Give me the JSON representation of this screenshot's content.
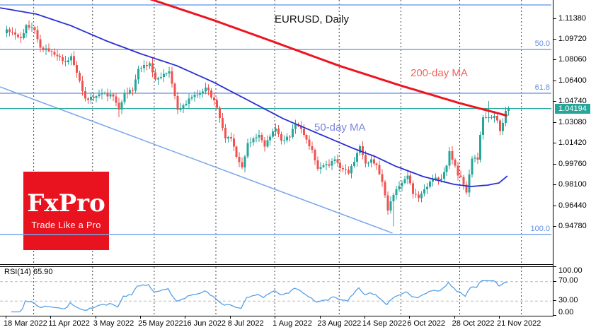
{
  "chart_data": {
    "type": "candlestick",
    "title": "EURUSD, Daily",
    "symbol": "EURUSD",
    "timeframe": "Daily",
    "grid": "monthly-dashed-vertical",
    "legend_position": "none",
    "price_axis_ticks": [
      {
        "label": "1.11380",
        "value": 1.1138
      },
      {
        "label": "1.09720",
        "value": 1.0972
      },
      {
        "label": "1.08060",
        "value": 1.0806
      },
      {
        "label": "1.06400",
        "value": 1.064
      },
      {
        "label": "1.04740",
        "value": 1.0474
      },
      {
        "label": "1.03080",
        "value": 1.0308
      },
      {
        "label": "1.01420",
        "value": 1.0142
      },
      {
        "label": "0.99760",
        "value": 0.9976
      },
      {
        "label": "0.98100",
        "value": 0.981
      },
      {
        "label": "0.96440",
        "value": 0.9644
      },
      {
        "label": "0.94780",
        "value": 0.9478
      }
    ],
    "time_axis_labels": [
      {
        "label": "18 Mar 2022",
        "index": 0
      },
      {
        "label": "11 Apr 2022",
        "index": 16
      },
      {
        "label": "3 May 2022",
        "index": 32
      },
      {
        "label": "25 May 2022",
        "index": 48
      },
      {
        "label": "16 Jun 2022",
        "index": 64
      },
      {
        "label": "8 Jul 2022",
        "index": 80
      },
      {
        "label": "1 Aug 2022",
        "index": 96
      },
      {
        "label": "23 Aug 2022",
        "index": 112
      },
      {
        "label": "14 Sep 2022",
        "index": 128
      },
      {
        "label": "6 Oct 2022",
        "index": 144
      },
      {
        "label": "28 Oct 2022",
        "index": 160
      },
      {
        "label": "21 Nov 2022",
        "index": 176
      }
    ],
    "month_gridline_indices": [
      10,
      31,
      53,
      75,
      96,
      119,
      141,
      162,
      184
    ],
    "num_candles": 180,
    "candle_close_anchors": [
      [
        0,
        1.105
      ],
      [
        2,
        1.1025
      ],
      [
        4,
        1.099
      ],
      [
        5,
        1.098
      ],
      [
        7,
        1.1085
      ],
      [
        9,
        1.1067
      ],
      [
        10,
        1.1045
      ],
      [
        12,
        1.0905
      ],
      [
        15,
        1.0876
      ],
      [
        19,
        1.0828
      ],
      [
        21,
        1.079
      ],
      [
        23,
        1.0838
      ],
      [
        26,
        1.064
      ],
      [
        28,
        1.0498
      ],
      [
        31,
        1.0505
      ],
      [
        34,
        1.054
      ],
      [
        38,
        1.0515
      ],
      [
        40,
        1.0411
      ],
      [
        42,
        1.0545
      ],
      [
        45,
        1.056
      ],
      [
        47,
        1.0735
      ],
      [
        51,
        1.078
      ],
      [
        53,
        1.065
      ],
      [
        57,
        1.07
      ],
      [
        58,
        1.0716
      ],
      [
        59,
        1.0617
      ],
      [
        61,
        1.041
      ],
      [
        63,
        1.0445
      ],
      [
        66,
        1.051
      ],
      [
        70,
        1.0555
      ],
      [
        71,
        1.0585
      ],
      [
        74,
        1.0484
      ],
      [
        75,
        1.0425
      ],
      [
        77,
        1.0265
      ],
      [
        78,
        1.018
      ],
      [
        80,
        1.018
      ],
      [
        82,
        1.0035
      ],
      [
        84,
        0.995
      ],
      [
        86,
        1.0145
      ],
      [
        88,
        1.018
      ],
      [
        90,
        1.021
      ],
      [
        92,
        1.0115
      ],
      [
        94,
        1.0195
      ],
      [
        96,
        1.026
      ],
      [
        98,
        1.0165
      ],
      [
        101,
        1.0193
      ],
      [
        103,
        1.0297
      ],
      [
        105,
        1.0258
      ],
      [
        107,
        1.0172
      ],
      [
        109,
        1.009
      ],
      [
        111,
        0.994
      ],
      [
        113,
        0.9968
      ],
      [
        115,
        0.9965
      ],
      [
        117,
        1.0015
      ],
      [
        119,
        0.9945
      ],
      [
        121,
        0.993
      ],
      [
        122,
        0.9903
      ],
      [
        124,
        0.9995
      ],
      [
        126,
        1.012
      ],
      [
        128,
        0.998
      ],
      [
        130,
        1.0015
      ],
      [
        132,
        0.997
      ],
      [
        134,
        0.9835
      ],
      [
        136,
        0.9608
      ],
      [
        138,
        0.973
      ],
      [
        140,
        0.98
      ],
      [
        141,
        0.9825
      ],
      [
        143,
        0.9885
      ],
      [
        145,
        0.974
      ],
      [
        147,
        0.9705
      ],
      [
        149,
        0.9775
      ],
      [
        152,
        0.9855
      ],
      [
        155,
        0.986
      ],
      [
        157,
        0.9965
      ],
      [
        158,
        1.008
      ],
      [
        160,
        0.9965
      ],
      [
        161,
        0.9885
      ],
      [
        162,
        0.9875
      ],
      [
        164,
        0.975
      ],
      [
        166,
        1.002
      ],
      [
        168,
        1.0012
      ],
      [
        169,
        1.021
      ],
      [
        170,
        1.035
      ],
      [
        172,
        1.035
      ],
      [
        174,
        1.0362
      ],
      [
        175,
        1.0325
      ],
      [
        176,
        1.024
      ],
      [
        177,
        1.0305
      ],
      [
        178,
        1.04
      ],
      [
        179,
        1.04194
      ]
    ],
    "wick_overrides": {
      "40": {
        "low": 1.035
      },
      "84": {
        "low": 0.9935
      },
      "138": {
        "low": 0.948
      },
      "172": {
        "high": 1.048
      },
      "179": {
        "high": 1.0437
      }
    },
    "ma200": {
      "label": "200-day MA",
      "period": 200,
      "anchors": [
        [
          51,
          1.1296
        ],
        [
          74,
          1.1125
        ],
        [
          96,
          1.0948
        ],
        [
          119,
          1.076
        ],
        [
          141,
          1.0602
        ],
        [
          162,
          1.0462
        ],
        [
          179,
          1.0362
        ]
      ]
    },
    "ma50": {
      "label": "50-day MA",
      "period": 50,
      "anchors": [
        [
          -2,
          1.1222
        ],
        [
          11,
          1.1172
        ],
        [
          23,
          1.1082
        ],
        [
          36,
          1.0958
        ],
        [
          48,
          1.0857
        ],
        [
          61,
          1.0761
        ],
        [
          74,
          1.0631
        ],
        [
          86,
          1.0491
        ],
        [
          99,
          1.0339
        ],
        [
          115,
          1.0187
        ],
        [
          124,
          1.0102
        ],
        [
          132,
          1.0035
        ],
        [
          139,
          0.9961
        ],
        [
          149,
          0.9877
        ],
        [
          160,
          0.9815
        ],
        [
          166,
          0.9798
        ],
        [
          172,
          0.9809
        ],
        [
          176,
          0.9826
        ],
        [
          179,
          0.9882
        ]
      ]
    },
    "fib_levels": [
      {
        "label": "",
        "value": 1.1245
      },
      {
        "label": "50.0",
        "value": 1.089
      },
      {
        "label": "61.8",
        "value": 1.0541
      },
      {
        "label": "100.0",
        "value": 0.9416
      }
    ],
    "trendline": {
      "from": [
        -2,
        1.0592
      ],
      "to": [
        138,
        0.9427
      ]
    },
    "price_line": {
      "label": "1.04194",
      "value": 1.04194
    },
    "rsi": {
      "label": "RSI(14) 65.90",
      "period": 14,
      "current_value": 65.9,
      "overbought_level": 70,
      "oversold_level": 30,
      "axis_labels": [
        {
          "label": "100.00",
          "value": 100
        },
        {
          "label": "70.00",
          "value": 70
        },
        {
          "label": "30.00",
          "value": 30
        },
        {
          "label": "0.00",
          "value": 0
        }
      ]
    }
  },
  "logo": {
    "name": "FxPro",
    "tagline": "Trade Like a Pro"
  },
  "colors": {
    "candle_up": "#26a69a",
    "candle_down": "#ef5350",
    "ma200": "#ed1421",
    "ma200_label": "#f26461",
    "ma50": "#2a2fd4",
    "ma50_label": "#7b85dd",
    "fib_line": "#77a4ec",
    "fib_label": "#5f8ee8",
    "trend_line": "#77a4ec",
    "price_line": "#26a69a",
    "badge_bg": "#26a69a",
    "rsi_line": "#55a0e8",
    "rsi_dash": "#bbbbbb",
    "month_grid": "#444444",
    "logo_bg": "#e8131e"
  }
}
